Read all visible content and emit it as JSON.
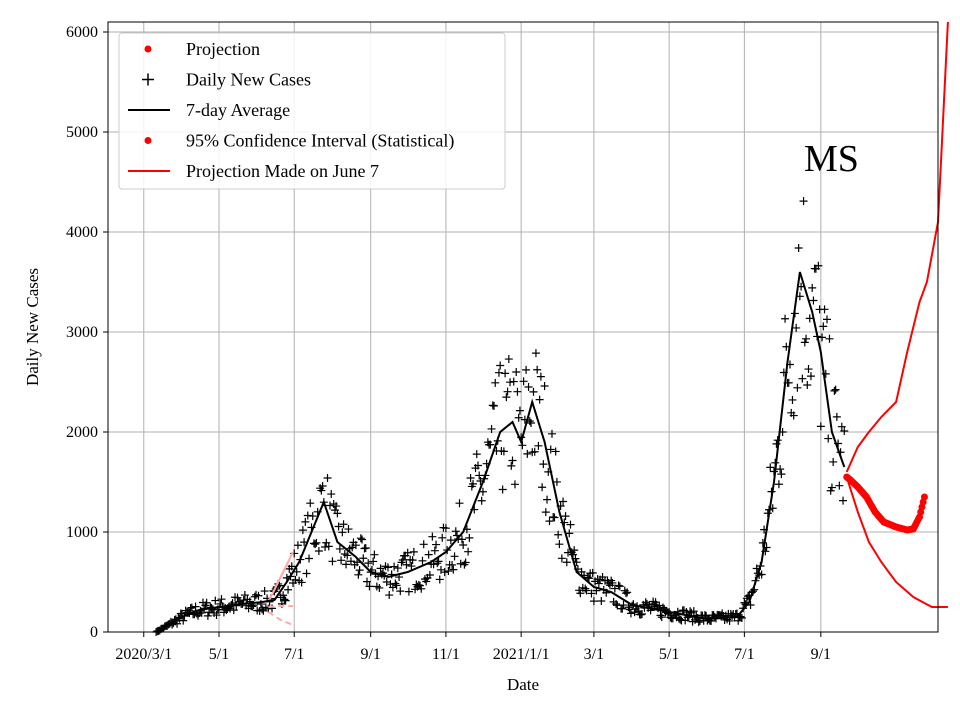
{
  "chart_data": {
    "type": "line",
    "title": "",
    "annotation": "MS",
    "xlabel": "Date",
    "ylabel": "Daily New Cases",
    "x_ticks": [
      "2020/3/1",
      "5/1",
      "7/1",
      "9/1",
      "11/1",
      "2021/1/1",
      "3/1",
      "5/1",
      "7/1",
      "9/1"
    ],
    "y_ticks": [
      0,
      1000,
      2000,
      3000,
      4000,
      5000,
      6000
    ],
    "xlim": [
      "2020-02-01",
      "2021-12-05"
    ],
    "ylim": [
      0,
      6100
    ],
    "grid": true,
    "legend_position": "top-left",
    "legend": [
      {
        "label": "Projection",
        "marker": "dot",
        "color": "#ff0000"
      },
      {
        "label": "Daily New Cases",
        "marker": "plus",
        "color": "#000000"
      },
      {
        "label": "7-day Average",
        "marker": "line",
        "color": "#000000"
      },
      {
        "label": "95% Confidence Interval (Statistical)",
        "marker": "dot",
        "color": "#ff0000"
      },
      {
        "label": "Projection Made on June 7",
        "marker": "line",
        "color": "#ff0000"
      }
    ],
    "average_7day": [
      [
        "2020-03-11",
        0
      ],
      [
        "2020-03-20",
        60
      ],
      [
        "2020-04-01",
        150
      ],
      [
        "2020-04-15",
        220
      ],
      [
        "2020-05-01",
        250
      ],
      [
        "2020-05-20",
        280
      ],
      [
        "2020-06-05",
        300
      ],
      [
        "2020-06-15",
        320
      ],
      [
        "2020-06-25",
        500
      ],
      [
        "2020-07-05",
        700
      ],
      [
        "2020-07-15",
        1000
      ],
      [
        "2020-07-25",
        1300
      ],
      [
        "2020-08-05",
        900
      ],
      [
        "2020-08-20",
        750
      ],
      [
        "2020-09-01",
        600
      ],
      [
        "2020-09-15",
        550
      ],
      [
        "2020-10-01",
        600
      ],
      [
        "2020-10-20",
        700
      ],
      [
        "2020-11-01",
        800
      ],
      [
        "2020-11-15",
        1000
      ],
      [
        "2020-12-01",
        1500
      ],
      [
        "2020-12-15",
        2000
      ],
      [
        "2020-12-25",
        2100
      ],
      [
        "2021-01-01",
        1900
      ],
      [
        "2021-01-10",
        2300
      ],
      [
        "2021-01-20",
        1900
      ],
      [
        "2021-02-01",
        1200
      ],
      [
        "2021-02-15",
        600
      ],
      [
        "2021-03-01",
        450
      ],
      [
        "2021-03-15",
        400
      ],
      [
        "2021-04-01",
        270
      ],
      [
        "2021-05-01",
        200
      ],
      [
        "2021-06-01",
        130
      ],
      [
        "2021-06-25",
        150
      ],
      [
        "2021-07-05",
        300
      ],
      [
        "2021-07-15",
        700
      ],
      [
        "2021-07-25",
        1500
      ],
      [
        "2021-08-05",
        2700
      ],
      [
        "2021-08-15",
        3600
      ],
      [
        "2021-08-25",
        3200
      ],
      [
        "2021-09-01",
        2800
      ],
      [
        "2021-09-10",
        2000
      ],
      [
        "2021-09-20",
        1650
      ]
    ],
    "projection": [
      [
        "2021-09-22",
        1550
      ],
      [
        "2021-09-25",
        1520
      ],
      [
        "2021-10-01",
        1450
      ],
      [
        "2021-10-08",
        1350
      ],
      [
        "2021-10-15",
        1200
      ],
      [
        "2021-10-22",
        1100
      ],
      [
        "2021-11-01",
        1050
      ],
      [
        "2021-11-10",
        1020
      ],
      [
        "2021-11-15",
        1030
      ],
      [
        "2021-11-20",
        1150
      ],
      [
        "2021-11-24",
        1350
      ]
    ],
    "projection_june7": [
      [
        "2020-06-10",
        300
      ],
      [
        "2020-06-20",
        550
      ],
      [
        "2020-06-30",
        800
      ]
    ],
    "ci_upper": [
      [
        "2021-09-22",
        1600
      ],
      [
        "2021-10-01",
        1850
      ],
      [
        "2021-10-10",
        2000
      ],
      [
        "2021-10-20",
        2150
      ],
      [
        "2021-11-01",
        2300
      ],
      [
        "2021-11-10",
        2800
      ],
      [
        "2021-11-20",
        3300
      ],
      [
        "2021-11-26",
        3500
      ],
      [
        "2021-12-05",
        4100
      ],
      [
        "2021-12-13",
        6100
      ]
    ],
    "ci_lower": [
      [
        "2021-09-22",
        1550
      ],
      [
        "2021-10-01",
        1200
      ],
      [
        "2021-10-10",
        900
      ],
      [
        "2021-10-20",
        700
      ],
      [
        "2021-11-01",
        500
      ],
      [
        "2021-11-15",
        350
      ],
      [
        "2021-11-30",
        250
      ],
      [
        "2021-12-13",
        250
      ]
    ],
    "ci_june7_upper": [
      [
        "2020-06-10",
        250
      ],
      [
        "2020-06-20",
        260
      ],
      [
        "2020-06-30",
        260
      ]
    ],
    "ci_june7_lower": [
      [
        "2020-06-10",
        200
      ],
      [
        "2020-06-20",
        120
      ],
      [
        "2020-06-30",
        70
      ]
    ],
    "colors": {
      "data": "#000000",
      "projection": "#ff0000",
      "ci_faded": "#ffaaaa",
      "grid": "#b0b0b0"
    }
  }
}
